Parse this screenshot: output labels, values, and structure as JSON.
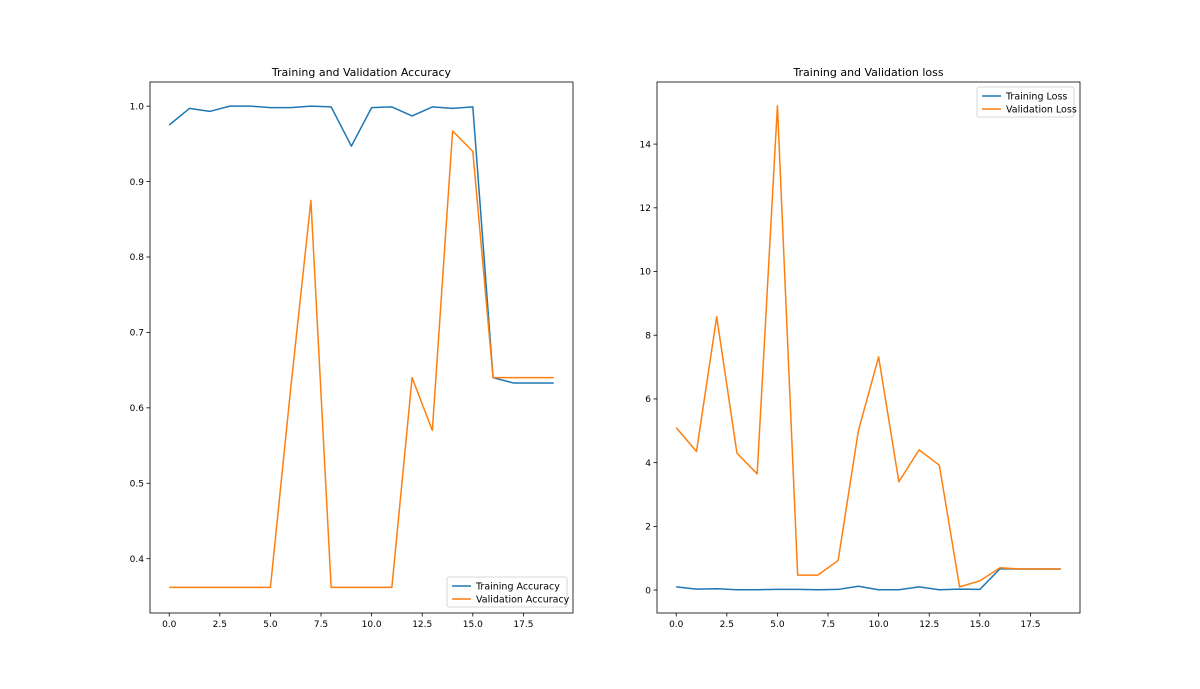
{
  "chart_data": [
    {
      "type": "line",
      "title": "Training and Validation Accuracy",
      "xlabel": "",
      "ylabel": "",
      "xlim": [
        -0.95,
        19.95
      ],
      "ylim": [
        0.328,
        1.032
      ],
      "xticks": [
        0.0,
        2.5,
        5.0,
        7.5,
        10.0,
        12.5,
        15.0,
        17.5
      ],
      "xtick_labels": [
        "0.0",
        "2.5",
        "5.0",
        "7.5",
        "10.0",
        "12.5",
        "15.0",
        "17.5"
      ],
      "yticks": [
        0.4,
        0.5,
        0.6,
        0.7,
        0.8,
        0.9,
        1.0
      ],
      "ytick_labels": [
        "0.4",
        "0.5",
        "0.6",
        "0.7",
        "0.8",
        "0.9",
        "1.0"
      ],
      "grid": false,
      "legend_position": "lower-right",
      "x": [
        0,
        1,
        2,
        3,
        4,
        5,
        6,
        7,
        8,
        9,
        10,
        11,
        12,
        13,
        14,
        15,
        16,
        17,
        18,
        19
      ],
      "series": [
        {
          "name": "Training Accuracy",
          "color": "#1f77b4",
          "values": [
            0.975,
            0.997,
            0.993,
            1.0,
            1.0,
            0.998,
            0.998,
            1.0,
            0.999,
            0.947,
            0.998,
            0.999,
            0.987,
            0.999,
            0.997,
            0.999,
            0.64,
            0.633,
            0.633,
            0.633
          ]
        },
        {
          "name": "Validation Accuracy",
          "color": "#ff7f0e",
          "values": [
            0.362,
            0.362,
            0.362,
            0.362,
            0.362,
            0.362,
            0.625,
            0.875,
            0.362,
            0.362,
            0.362,
            0.362,
            0.64,
            0.57,
            0.967,
            0.94,
            0.64,
            0.64,
            0.64,
            0.64
          ]
        }
      ]
    },
    {
      "type": "line",
      "title": "Training and Validation loss",
      "xlabel": "",
      "ylabel": "",
      "xlim": [
        -0.95,
        19.95
      ],
      "ylim": [
        -0.72,
        15.95
      ],
      "xticks": [
        0.0,
        2.5,
        5.0,
        7.5,
        10.0,
        12.5,
        15.0,
        17.5
      ],
      "xtick_labels": [
        "0.0",
        "2.5",
        "5.0",
        "7.5",
        "10.0",
        "12.5",
        "15.0",
        "17.5"
      ],
      "yticks": [
        0,
        2,
        4,
        6,
        8,
        10,
        12,
        14
      ],
      "ytick_labels": [
        "0",
        "2",
        "4",
        "6",
        "8",
        "10",
        "12",
        "14"
      ],
      "grid": false,
      "legend_position": "upper-right",
      "x": [
        0,
        1,
        2,
        3,
        4,
        5,
        6,
        7,
        8,
        9,
        10,
        11,
        12,
        13,
        14,
        15,
        16,
        17,
        18,
        19
      ],
      "series": [
        {
          "name": "Training Loss",
          "color": "#1f77b4",
          "values": [
            0.1,
            0.03,
            0.04,
            0.01,
            0.01,
            0.02,
            0.02,
            0.01,
            0.02,
            0.12,
            0.01,
            0.01,
            0.1,
            0.01,
            0.03,
            0.02,
            0.67,
            0.66,
            0.66,
            0.66
          ]
        },
        {
          "name": "Validation Loss",
          "color": "#ff7f0e",
          "values": [
            5.1,
            4.35,
            8.58,
            4.3,
            3.65,
            15.2,
            0.47,
            0.47,
            0.93,
            5.0,
            7.32,
            3.4,
            4.4,
            3.92,
            0.1,
            0.29,
            0.7,
            0.66,
            0.66,
            0.66
          ]
        }
      ]
    }
  ]
}
